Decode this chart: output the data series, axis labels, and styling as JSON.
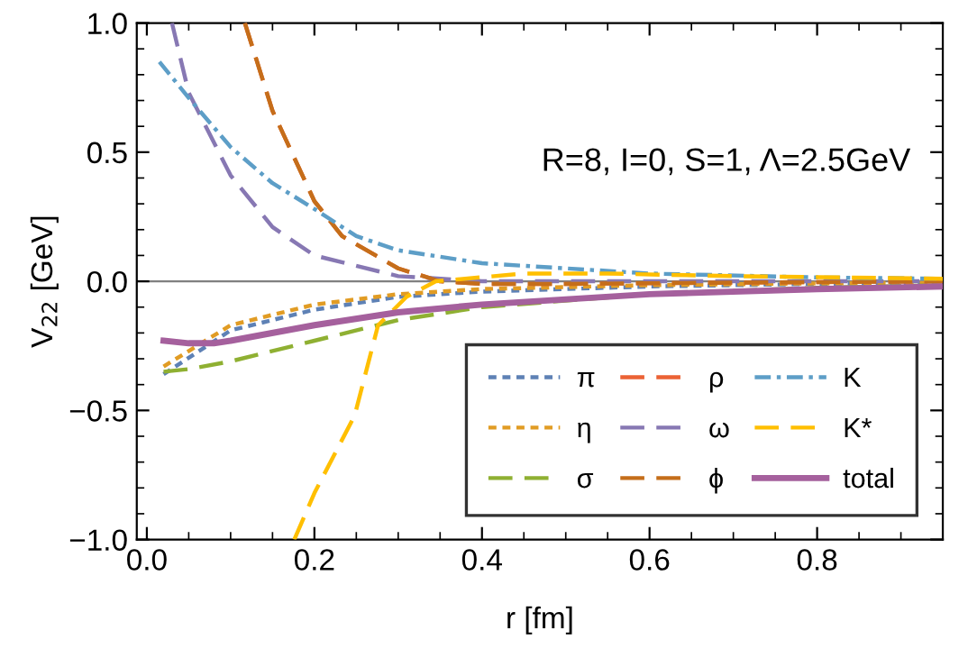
{
  "chart_data": {
    "type": "line",
    "xlabel": "r [fm]",
    "ylabel": "V$_{22}$ [GeV]",
    "annotations": [
      "R=8, I=0, S=1, Λ=2.5GeV"
    ],
    "xlim": [
      -0.012,
      0.95
    ],
    "ylim": [
      -1.0,
      1.0
    ],
    "xticks": [
      {
        "value": 0,
        "label": "0.0"
      },
      0.2,
      0.4,
      0.6,
      0.8
    ],
    "yticks": [
      {
        "value": -1,
        "label": "−1.0"
      },
      {
        "value": -0.5,
        "label": "−0.5"
      },
      {
        "value": 0,
        "label": "0.0"
      },
      0.5,
      {
        "value": 1,
        "label": "1.0"
      }
    ],
    "grid": false,
    "legend": "bottom right",
    "ref_lines": [
      {
        "axis": "y",
        "value": 0,
        "color": "#808080",
        "line_style": "solid"
      }
    ],
    "series": [
      {
        "name": "π",
        "color": "#5e81b5",
        "line_style": "dotted",
        "x": [
          0.02,
          0.1,
          0.2,
          0.3,
          0.4,
          0.6,
          0.8,
          0.95
        ],
        "values": [
          -0.36,
          -0.19,
          -0.11,
          -0.06,
          -0.04,
          -0.02,
          -0.01,
          -0.005
        ]
      },
      {
        "name": "η",
        "color": "#e19c24",
        "line_style": "dotted",
        "x": [
          0.02,
          0.1,
          0.2,
          0.3,
          0.4,
          0.6,
          0.8,
          0.95
        ],
        "values": [
          -0.33,
          -0.17,
          -0.09,
          -0.05,
          -0.03,
          -0.015,
          -0.008,
          -0.005
        ]
      },
      {
        "name": "σ",
        "color": "#8fb032",
        "line_style": "dashed",
        "x": [
          0.02,
          0.05,
          0.1,
          0.2,
          0.3,
          0.4,
          0.6,
          0.8,
          0.95
        ],
        "values": [
          -0.35,
          -0.34,
          -0.31,
          -0.23,
          -0.15,
          -0.1,
          -0.05,
          -0.025,
          -0.015
        ]
      },
      {
        "name": "ρ",
        "color": "#eb6235",
        "line_style": "dashed",
        "x": [
          0.117,
          0.15,
          0.2,
          0.233,
          0.3,
          0.35,
          0.4,
          0.5,
          0.7,
          0.95
        ],
        "values": [
          1.0,
          0.66,
          0.31,
          0.175,
          0.05,
          0.0,
          -0.01,
          -0.01,
          -0.005,
          0.0
        ]
      },
      {
        "name": "ω",
        "color": "#8778b3",
        "line_style": "dashed",
        "x": [
          0.03,
          0.05,
          0.1,
          0.15,
          0.2,
          0.3,
          0.4,
          0.6,
          0.95
        ],
        "values": [
          1.0,
          0.73,
          0.41,
          0.21,
          0.1,
          0.02,
          0.0,
          0.0,
          0.0
        ]
      },
      {
        "name": "ϕ",
        "color": "#c56e1a",
        "line_style": "dashed",
        "x": [
          0.117,
          0.15,
          0.2,
          0.233,
          0.3,
          0.35,
          0.4,
          0.5,
          0.7,
          0.95
        ],
        "values": [
          1.0,
          0.66,
          0.31,
          0.175,
          0.05,
          0.0,
          -0.01,
          -0.01,
          -0.005,
          0.0
        ]
      },
      {
        "name": "K",
        "color": "#5d9ec7",
        "line_style": "dashdot",
        "x": [
          0.015,
          0.05,
          0.1,
          0.15,
          0.2,
          0.25,
          0.3,
          0.4,
          0.6,
          0.8,
          0.95
        ],
        "values": [
          0.85,
          0.71,
          0.52,
          0.38,
          0.28,
          0.175,
          0.12,
          0.07,
          0.03,
          0.015,
          0.01
        ]
      },
      {
        "name": "K*",
        "color": "#ffbf00",
        "line_style": "dashed",
        "x": [
          0.176,
          0.2,
          0.248,
          0.276,
          0.31,
          0.345,
          0.45,
          0.55,
          0.7,
          0.95
        ],
        "values": [
          -1.0,
          -0.82,
          -0.52,
          -0.17,
          -0.06,
          0.0,
          0.03,
          0.03,
          0.02,
          0.01
        ]
      },
      {
        "name": "total",
        "color": "#a5609d",
        "line_style": "solid",
        "x": [
          0.02,
          0.05,
          0.08,
          0.1,
          0.2,
          0.3,
          0.4,
          0.6,
          0.8,
          0.95
        ],
        "values": [
          -0.23,
          -0.24,
          -0.24,
          -0.23,
          -0.17,
          -0.12,
          -0.09,
          -0.05,
          -0.03,
          -0.02
        ]
      }
    ]
  }
}
